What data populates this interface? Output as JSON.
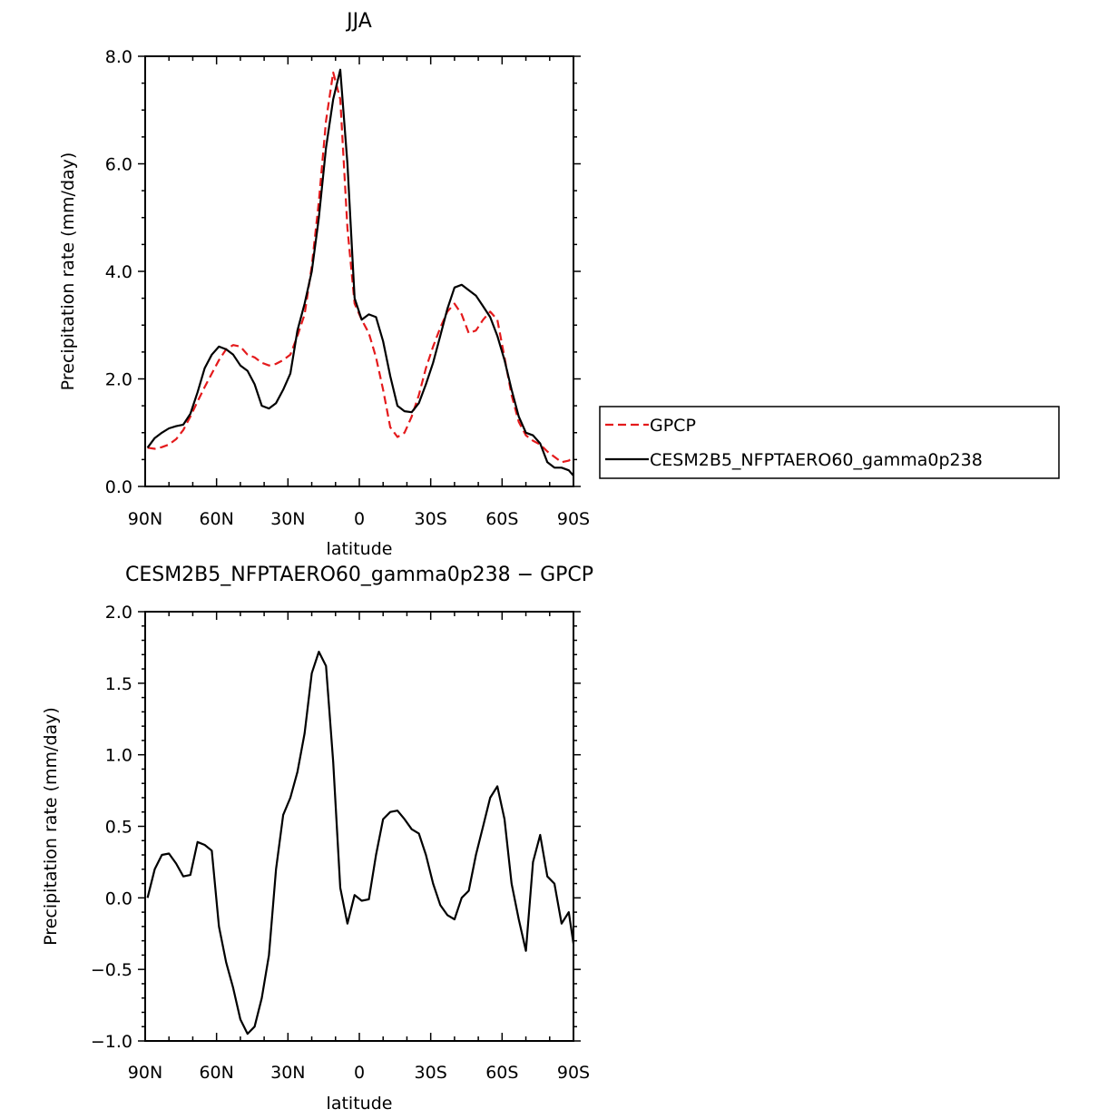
{
  "chart_data": [
    {
      "type": "line",
      "title": "JJA",
      "xlabel": "latitude",
      "ylabel": "Precipitation rate (mm/day)",
      "xlim": [
        90,
        -90
      ],
      "ylim": [
        0,
        8
      ],
      "x_ticks": [
        90,
        60,
        30,
        0,
        -30,
        -60,
        -90
      ],
      "x_tick_labels": [
        "90N",
        "60N",
        "30N",
        "0",
        "30S",
        "60S",
        "90S"
      ],
      "y_ticks": [
        0,
        2,
        4,
        6,
        8
      ],
      "y_tick_labels": [
        "0.0",
        "2.0",
        "4.0",
        "6.0",
        "8.0"
      ],
      "legend_position": "right",
      "series": [
        {
          "name": "GPCP",
          "color": "#e41a1c",
          "style": "dashed",
          "x": [
            89,
            86,
            83,
            80,
            77,
            74,
            71,
            68,
            65,
            62,
            59,
            56,
            53,
            50,
            47,
            44,
            41,
            38,
            35,
            32,
            29,
            26,
            23,
            20,
            17,
            14,
            11,
            8,
            5,
            2,
            -1,
            -4,
            -7,
            -10,
            -13,
            -16,
            -19,
            -22,
            -25,
            -28,
            -31,
            -34,
            -37,
            -40,
            -43,
            -46,
            -49,
            -52,
            -55,
            -58,
            -61,
            -64,
            -67,
            -70,
            -73,
            -76,
            -79,
            -82,
            -85,
            -88,
            -90
          ],
          "values": [
            0.72,
            0.7,
            0.73,
            0.78,
            0.88,
            1.05,
            1.3,
            1.58,
            1.85,
            2.1,
            2.35,
            2.55,
            2.63,
            2.6,
            2.45,
            2.4,
            2.3,
            2.25,
            2.28,
            2.35,
            2.45,
            2.8,
            3.2,
            4.1,
            5.3,
            6.8,
            7.7,
            7.2,
            4.8,
            3.4,
            3.1,
            2.85,
            2.4,
            1.8,
            1.1,
            0.92,
            1.0,
            1.3,
            1.7,
            2.2,
            2.6,
            2.95,
            3.25,
            3.4,
            3.2,
            2.85,
            2.9,
            3.1,
            3.25,
            3.1,
            2.4,
            1.7,
            1.2,
            0.95,
            0.85,
            0.78,
            0.65,
            0.55,
            0.45,
            0.48,
            0.55
          ]
        },
        {
          "name": "CESM2B5_NFPTAERO60_gamma0p238",
          "color": "#000000",
          "style": "solid",
          "x": [
            89,
            86,
            83,
            80,
            77,
            74,
            71,
            68,
            65,
            62,
            59,
            56,
            53,
            50,
            47,
            44,
            41,
            38,
            35,
            32,
            29,
            26,
            23,
            20,
            17,
            14,
            11,
            8,
            5,
            2,
            -1,
            -4,
            -7,
            -10,
            -13,
            -16,
            -19,
            -22,
            -25,
            -28,
            -31,
            -34,
            -37,
            -40,
            -43,
            -46,
            -49,
            -52,
            -55,
            -58,
            -61,
            -64,
            -67,
            -70,
            -73,
            -76,
            -79,
            -82,
            -85,
            -88,
            -90
          ],
          "values": [
            0.72,
            0.9,
            1.0,
            1.08,
            1.12,
            1.15,
            1.35,
            1.75,
            2.2,
            2.45,
            2.6,
            2.55,
            2.45,
            2.25,
            2.15,
            1.9,
            1.5,
            1.45,
            1.55,
            1.8,
            2.1,
            2.9,
            3.4,
            4.0,
            5.0,
            6.3,
            7.2,
            7.75,
            6.0,
            3.5,
            3.1,
            3.2,
            3.15,
            2.7,
            2.05,
            1.5,
            1.4,
            1.38,
            1.55,
            1.9,
            2.3,
            2.8,
            3.3,
            3.7,
            3.75,
            3.65,
            3.55,
            3.35,
            3.15,
            2.8,
            2.35,
            1.8,
            1.3,
            1.0,
            0.95,
            0.8,
            0.45,
            0.35,
            0.35,
            0.3,
            0.2
          ]
        }
      ]
    },
    {
      "type": "line",
      "title": "CESM2B5_NFPTAERO60_gamma0p238 − GPCP",
      "xlabel": "latitude",
      "ylabel": "Precipitation rate (mm/day)",
      "xlim": [
        90,
        -90
      ],
      "ylim": [
        -1,
        2
      ],
      "x_ticks": [
        90,
        60,
        30,
        0,
        -30,
        -60,
        -90
      ],
      "x_tick_labels": [
        "90N",
        "60N",
        "30N",
        "0",
        "30S",
        "60S",
        "90S"
      ],
      "y_ticks": [
        -1,
        -0.5,
        0,
        0.5,
        1,
        1.5,
        2
      ],
      "y_tick_labels": [
        "−1.0",
        "−0.5",
        "0.0",
        "0.5",
        "1.0",
        "1.5",
        "2.0"
      ],
      "series": [
        {
          "color": "#000000",
          "style": "solid",
          "x": [
            89,
            86,
            83,
            80,
            77,
            74,
            71,
            68,
            65,
            62,
            59,
            56,
            53,
            50,
            47,
            44,
            41,
            38,
            35,
            32,
            29,
            26,
            23,
            20,
            17,
            14,
            11,
            8,
            5,
            2,
            -1,
            -4,
            -7,
            -10,
            -13,
            -16,
            -19,
            -22,
            -25,
            -28,
            -31,
            -34,
            -37,
            -40,
            -43,
            -46,
            -49,
            -52,
            -55,
            -58,
            -61,
            -64,
            -67,
            -70,
            -73,
            -76,
            -79,
            -82,
            -85,
            -88,
            -90
          ],
          "values": [
            0.0,
            0.2,
            0.3,
            0.31,
            0.24,
            0.15,
            0.16,
            0.39,
            0.37,
            0.33,
            -0.2,
            -0.45,
            -0.63,
            -0.85,
            -0.95,
            -0.9,
            -0.7,
            -0.4,
            0.2,
            0.58,
            0.7,
            0.88,
            1.15,
            1.57,
            1.72,
            1.62,
            0.95,
            0.07,
            -0.18,
            0.02,
            -0.02,
            -0.01,
            0.3,
            0.55,
            0.6,
            0.61,
            0.55,
            0.48,
            0.45,
            0.3,
            0.1,
            -0.05,
            -0.12,
            -0.15,
            0.0,
            0.05,
            0.3,
            0.5,
            0.7,
            0.78,
            0.55,
            0.1,
            -0.15,
            -0.37,
            0.25,
            0.44,
            0.15,
            0.1,
            -0.18,
            -0.1,
            -0.32
          ]
        }
      ]
    }
  ]
}
